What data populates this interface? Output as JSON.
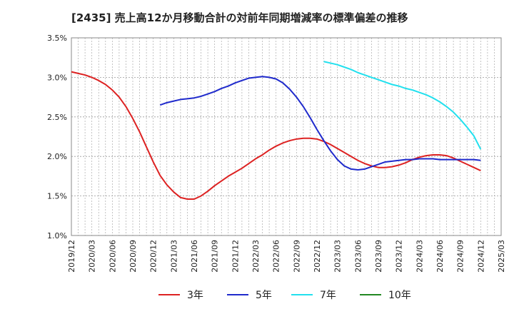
{
  "chart_data": {
    "type": "line",
    "title": "[2435]  売上高12か月移動合計の対前年同期増減率の標準偏差の推移",
    "xlabel": "",
    "ylabel": "",
    "x_ticks": [
      "2019/12",
      "2020/03",
      "2020/06",
      "2020/09",
      "2020/12",
      "2021/03",
      "2021/06",
      "2021/09",
      "2021/12",
      "2022/03",
      "2022/06",
      "2022/09",
      "2022/12",
      "2023/03",
      "2023/06",
      "2023/09",
      "2023/12",
      "2024/03",
      "2024/06",
      "2024/09",
      "2024/12",
      "2025/03"
    ],
    "y_ticks": [
      "1.0%",
      "1.5%",
      "2.0%",
      "2.5%",
      "3.0%",
      "3.5%"
    ],
    "y_tick_values": [
      1.0,
      1.5,
      2.0,
      2.5,
      3.0,
      3.5
    ],
    "ylim": [
      1.0,
      3.5
    ],
    "grid": true,
    "legend_position": "bottom",
    "series": [
      {
        "name": "3年",
        "color": "#dd2222",
        "points": [
          [
            "2019/12",
            3.07
          ],
          [
            "2020/01",
            3.05
          ],
          [
            "2020/02",
            3.03
          ],
          [
            "2020/03",
            3.0
          ],
          [
            "2020/04",
            2.96
          ],
          [
            "2020/05",
            2.91
          ],
          [
            "2020/06",
            2.84
          ],
          [
            "2020/07",
            2.75
          ],
          [
            "2020/08",
            2.63
          ],
          [
            "2020/09",
            2.48
          ],
          [
            "2020/10",
            2.31
          ],
          [
            "2020/11",
            2.12
          ],
          [
            "2020/12",
            1.93
          ],
          [
            "2020/01",
            null
          ],
          [
            "2021/01",
            1.76
          ],
          [
            "2021/02",
            1.64
          ],
          [
            "2021/03",
            1.55
          ],
          [
            "2021/04",
            1.48
          ],
          [
            "2021/05",
            1.46
          ],
          [
            "2021/06",
            1.46
          ],
          [
            "2021/07",
            1.5
          ],
          [
            "2021/08",
            1.56
          ],
          [
            "2021/09",
            1.63
          ],
          [
            "2021/10",
            1.69
          ],
          [
            "2021/11",
            1.75
          ],
          [
            "2021/12",
            1.8
          ],
          [
            "2022/01",
            1.85
          ],
          [
            "2022/02",
            1.91
          ],
          [
            "2022/03",
            1.97
          ],
          [
            "2022/04",
            2.02
          ],
          [
            "2022/05",
            2.08
          ],
          [
            "2022/06",
            2.13
          ],
          [
            "2022/07",
            2.17
          ],
          [
            "2022/08",
            2.2
          ],
          [
            "2022/09",
            2.22
          ],
          [
            "2022/10",
            2.23
          ],
          [
            "2022/11",
            2.23
          ],
          [
            "2022/12",
            2.22
          ],
          [
            "2023/01",
            2.19
          ],
          [
            "2023/02",
            2.15
          ],
          [
            "2023/03",
            2.1
          ],
          [
            "2023/04",
            2.05
          ],
          [
            "2023/05",
            2.0
          ],
          [
            "2023/06",
            1.95
          ],
          [
            "2023/07",
            1.91
          ],
          [
            "2023/08",
            1.88
          ],
          [
            "2023/09",
            1.86
          ],
          [
            "2023/10",
            1.86
          ],
          [
            "2023/11",
            1.87
          ],
          [
            "2023/12",
            1.89
          ],
          [
            "2024/01",
            1.92
          ],
          [
            "2024/02",
            1.96
          ],
          [
            "2024/03",
            1.99
          ],
          [
            "2024/04",
            2.01
          ],
          [
            "2024/05",
            2.02
          ],
          [
            "2024/06",
            2.02
          ],
          [
            "2024/07",
            2.01
          ],
          [
            "2024/08",
            1.98
          ],
          [
            "2024/09",
            1.94
          ],
          [
            "2024/10",
            1.9
          ],
          [
            "2024/11",
            1.86
          ],
          [
            "2024/12",
            1.82
          ]
        ]
      },
      {
        "name": "5年",
        "color": "#1f2acc",
        "points": [
          [
            "2021/01",
            2.65
          ],
          [
            "2021/02",
            2.68
          ],
          [
            "2021/03",
            2.7
          ],
          [
            "2021/04",
            2.72
          ],
          [
            "2021/05",
            2.73
          ],
          [
            "2021/06",
            2.74
          ],
          [
            "2021/07",
            2.76
          ],
          [
            "2021/08",
            2.79
          ],
          [
            "2021/09",
            2.82
          ],
          [
            "2021/10",
            2.86
          ],
          [
            "2021/11",
            2.89
          ],
          [
            "2021/12",
            2.93
          ],
          [
            "2022/01",
            2.96
          ],
          [
            "2022/02",
            2.99
          ],
          [
            "2022/03",
            3.0
          ],
          [
            "2022/04",
            3.01
          ],
          [
            "2022/05",
            3.0
          ],
          [
            "2022/06",
            2.98
          ],
          [
            "2022/07",
            2.93
          ],
          [
            "2022/08",
            2.85
          ],
          [
            "2022/09",
            2.75
          ],
          [
            "2022/10",
            2.63
          ],
          [
            "2022/11",
            2.49
          ],
          [
            "2022/12",
            2.34
          ],
          [
            "2023/01",
            2.2
          ],
          [
            "2023/02",
            2.07
          ],
          [
            "2023/03",
            1.96
          ],
          [
            "2023/04",
            1.88
          ],
          [
            "2023/05",
            1.84
          ],
          [
            "2023/06",
            1.83
          ],
          [
            "2023/07",
            1.84
          ],
          [
            "2023/08",
            1.87
          ],
          [
            "2023/09",
            1.9
          ],
          [
            "2023/10",
            1.93
          ],
          [
            "2023/11",
            1.94
          ],
          [
            "2023/12",
            1.95
          ],
          [
            "2024/01",
            1.96
          ],
          [
            "2024/02",
            1.96
          ],
          [
            "2024/03",
            1.97
          ],
          [
            "2024/04",
            1.97
          ],
          [
            "2024/05",
            1.97
          ],
          [
            "2024/06",
            1.96
          ],
          [
            "2024/07",
            1.96
          ],
          [
            "2024/08",
            1.96
          ],
          [
            "2024/09",
            1.96
          ],
          [
            "2024/10",
            1.96
          ],
          [
            "2024/11",
            1.96
          ],
          [
            "2024/12",
            1.95
          ]
        ]
      },
      {
        "name": "7年",
        "color": "#22e0ee",
        "points": [
          [
            "2023/01",
            3.2
          ],
          [
            "2023/02",
            3.18
          ],
          [
            "2023/03",
            3.16
          ],
          [
            "2023/04",
            3.13
          ],
          [
            "2023/05",
            3.1
          ],
          [
            "2023/06",
            3.06
          ],
          [
            "2023/07",
            3.03
          ],
          [
            "2023/08",
            3.0
          ],
          [
            "2023/09",
            2.97
          ],
          [
            "2023/10",
            2.94
          ],
          [
            "2023/11",
            2.91
          ],
          [
            "2023/12",
            2.89
          ],
          [
            "2024/01",
            2.86
          ],
          [
            "2024/02",
            2.84
          ],
          [
            "2024/03",
            2.81
          ],
          [
            "2024/04",
            2.78
          ],
          [
            "2024/05",
            2.74
          ],
          [
            "2024/06",
            2.69
          ],
          [
            "2024/07",
            2.63
          ],
          [
            "2024/08",
            2.56
          ],
          [
            "2024/09",
            2.47
          ],
          [
            "2024/10",
            2.37
          ],
          [
            "2024/11",
            2.26
          ],
          [
            "2024/12",
            2.09
          ]
        ]
      },
      {
        "name": "10年",
        "color": "#228822",
        "points": []
      }
    ]
  }
}
